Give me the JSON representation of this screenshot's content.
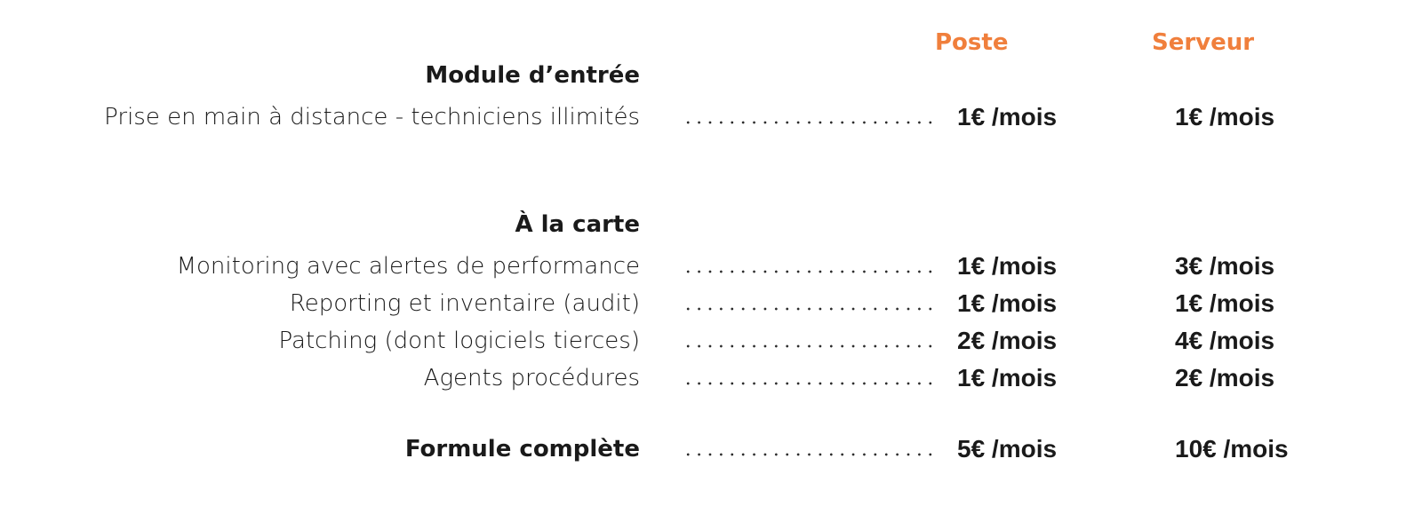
{
  "columns": {
    "poste": "Poste",
    "serveur": "Serveur"
  },
  "sections": [
    {
      "title": "Module d’entrée",
      "rows": [
        {
          "label": "Prise en main à distance - techniciens illimités",
          "poste": "1€ /mois",
          "serveur": "1€ /mois"
        }
      ]
    },
    {
      "title": "À la carte",
      "rows": [
        {
          "label": "Monitoring avec alertes de performance",
          "poste": "1€ /mois",
          "serveur": "3€ /mois"
        },
        {
          "label": "Reporting et inventaire (audit)",
          "poste": "1€ /mois",
          "serveur": "1€ /mois"
        },
        {
          "label": "Patching (dont logiciels tierces)",
          "poste": "2€ /mois",
          "serveur": "4€ /mois"
        },
        {
          "label": "Agents procédures",
          "poste": "1€ /mois",
          "serveur": "2€ /mois"
        }
      ]
    }
  ],
  "total": {
    "label": "Formule complète",
    "poste": "5€ /mois",
    "serveur": "10€ /mois"
  },
  "colors": {
    "accent": "#f07f3c",
    "text": "#1a1a1a"
  }
}
